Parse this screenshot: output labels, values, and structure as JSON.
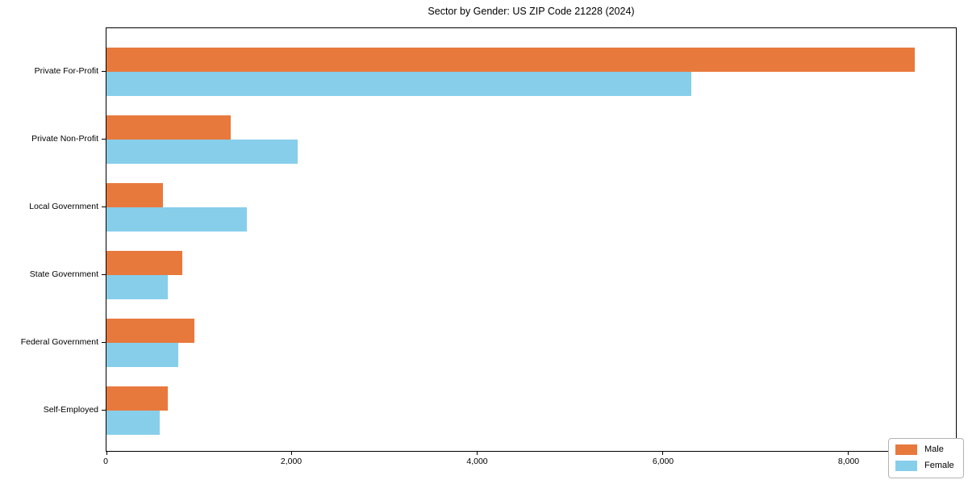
{
  "figure": {
    "background": "#ffffff",
    "title": "Sector by Gender: US ZIP Code 21228 (2024)"
  },
  "chart_data": {
    "type": "bar",
    "orientation": "horizontal",
    "title": "Sector by Gender: US ZIP Code 21228 (2024)",
    "categories": [
      "Private For-Profit",
      "Private Non-Profit",
      "Local Government",
      "State Government",
      "Federal Government",
      "Self-Employed"
    ],
    "series": [
      {
        "name": "Male",
        "color": "#E8793D",
        "values": [
          8720,
          1340,
          610,
          820,
          950,
          660
        ]
      },
      {
        "name": "Female",
        "color": "#87CEEB",
        "values": [
          6310,
          2060,
          1510,
          660,
          770,
          570
        ]
      }
    ],
    "xlabel": "",
    "ylabel": "",
    "xlim": [
      0,
      9160
    ],
    "xticks": [
      0,
      2000,
      4000,
      6000,
      8000
    ],
    "xtick_labels": [
      "0",
      "2,000",
      "4,000",
      "6,000",
      "8,000"
    ],
    "grid": false,
    "legend": {
      "position": "lower right",
      "entries": [
        "Male",
        "Female"
      ]
    }
  }
}
